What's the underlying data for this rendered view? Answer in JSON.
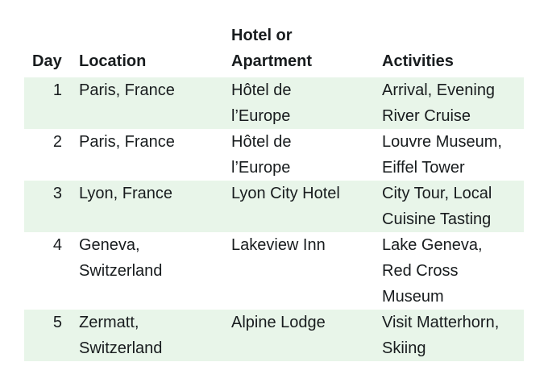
{
  "page": {
    "background_color": "#ffffff"
  },
  "table": {
    "stripe_color": "#e8f5e9",
    "text_color": "#181c1e",
    "columns": [
      {
        "id": "day",
        "label": "Day"
      },
      {
        "id": "location",
        "label": "Location"
      },
      {
        "id": "hotel",
        "label": "Hotel or\nApartment"
      },
      {
        "id": "activities",
        "label": "Activities"
      }
    ],
    "rows": [
      {
        "day": "1",
        "location": "Paris, France",
        "hotel": "Hôtel de\nl’Europe",
        "activities": "Arrival, Evening\nRiver Cruise"
      },
      {
        "day": "2",
        "location": "Paris, France",
        "hotel": "Hôtel de\nl’Europe",
        "activities": "Louvre Museum,\nEiffel Tower"
      },
      {
        "day": "3",
        "location": "Lyon, France",
        "hotel": "Lyon City Hotel",
        "activities": "City Tour, Local\nCuisine Tasting"
      },
      {
        "day": "4",
        "location": "Geneva,\nSwitzerland",
        "hotel": "Lakeview Inn",
        "activities": "Lake Geneva,\nRed Cross\nMuseum"
      },
      {
        "day": "5",
        "location": "Zermatt,\nSwitzerland",
        "hotel": "Alpine Lodge",
        "activities": "Visit Matterhorn,\nSkiing"
      }
    ]
  }
}
